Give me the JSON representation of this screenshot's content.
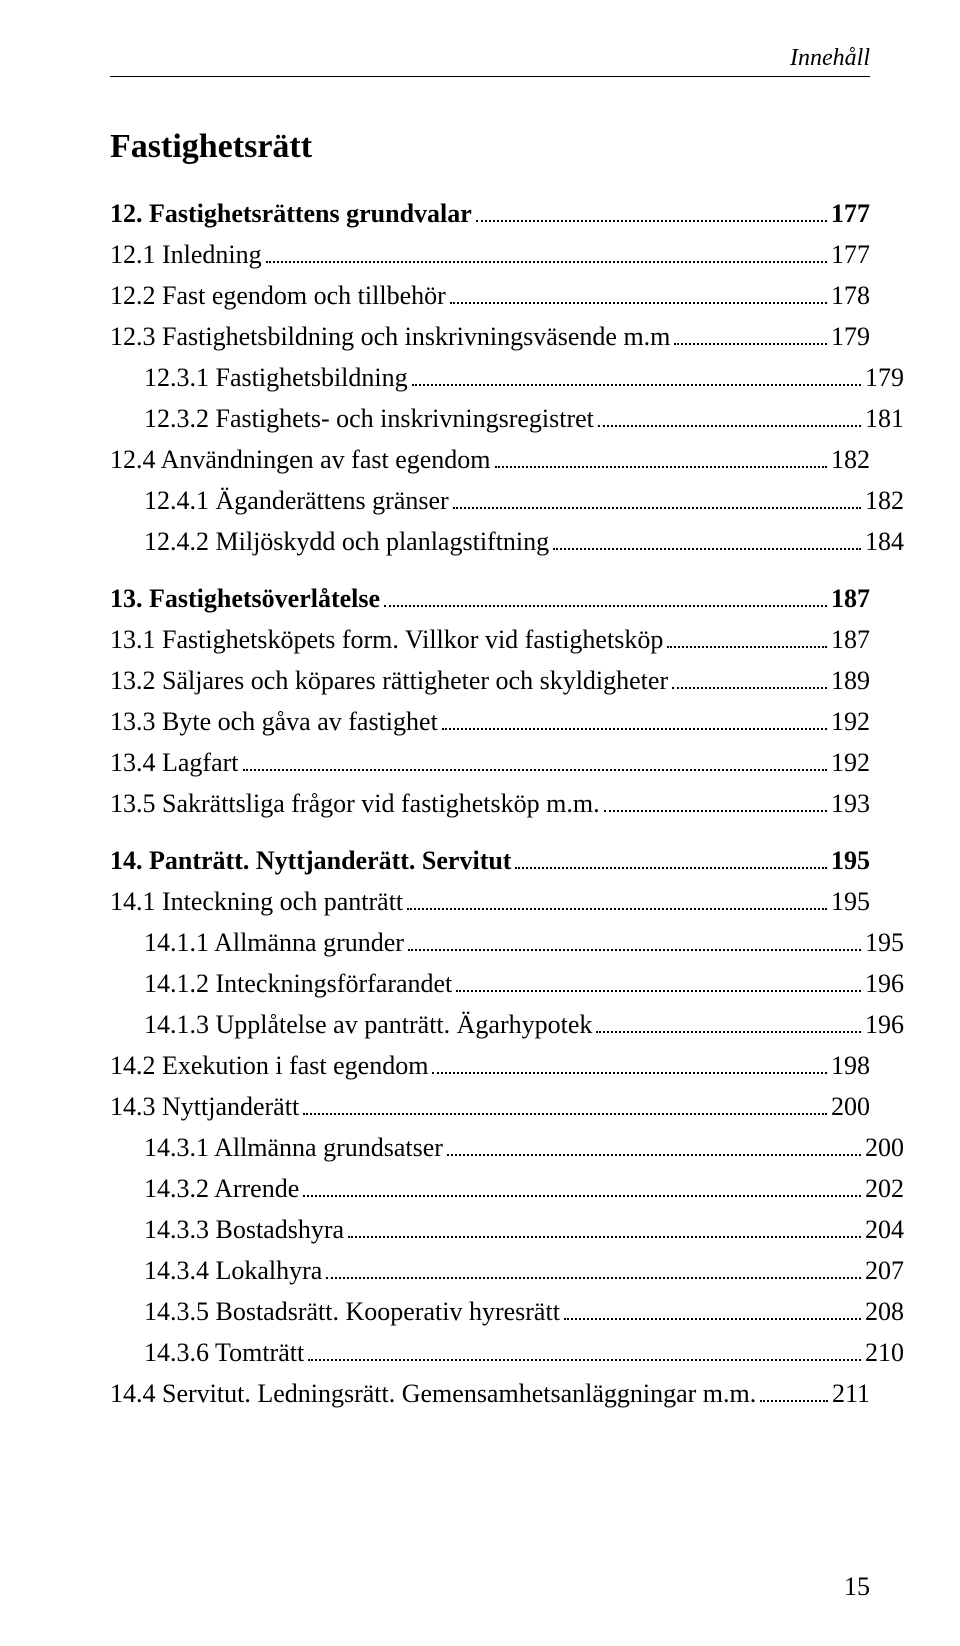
{
  "header": {
    "running_title": "Innehåll"
  },
  "section": {
    "title": "Fastighetsrätt"
  },
  "toc": [
    {
      "label": "12. Fastighetsrättens grundvalar",
      "page": "177",
      "bold": true,
      "indent": 0,
      "gap": false
    },
    {
      "label": "12.1 Inledning",
      "page": "177",
      "bold": false,
      "indent": 0,
      "gap": false
    },
    {
      "label": "12.2 Fast egendom och tillbehör",
      "page": "178",
      "bold": false,
      "indent": 0,
      "gap": false
    },
    {
      "label": "12.3 Fastighetsbildning och inskrivningsväsende m.m",
      "page": "179",
      "bold": false,
      "indent": 0,
      "gap": false
    },
    {
      "label": "12.3.1 Fastighetsbildning",
      "page": "179",
      "bold": false,
      "indent": 1,
      "gap": false
    },
    {
      "label": "12.3.2 Fastighets- och inskrivningsregistret",
      "page": "181",
      "bold": false,
      "indent": 1,
      "gap": false
    },
    {
      "label": "12.4 Användningen av fast egendom",
      "page": "182",
      "bold": false,
      "indent": 0,
      "gap": false
    },
    {
      "label": "12.4.1 Äganderättens gränser",
      "page": "182",
      "bold": false,
      "indent": 1,
      "gap": false
    },
    {
      "label": "12.4.2 Miljöskydd och planlagstiftning",
      "page": "184",
      "bold": false,
      "indent": 1,
      "gap": false
    },
    {
      "label": "13. Fastighetsöverlåtelse",
      "page": "187",
      "bold": true,
      "indent": 0,
      "gap": true
    },
    {
      "label": "13.1 Fastighetsköpets form. Villkor vid fastighetsköp",
      "page": "187",
      "bold": false,
      "indent": 0,
      "gap": false
    },
    {
      "label": "13.2 Säljares och köpares rättigheter och skyldigheter",
      "page": "189",
      "bold": false,
      "indent": 0,
      "gap": false
    },
    {
      "label": "13.3 Byte och gåva av fastighet",
      "page": "192",
      "bold": false,
      "indent": 0,
      "gap": false
    },
    {
      "label": "13.4 Lagfart",
      "page": "192",
      "bold": false,
      "indent": 0,
      "gap": false
    },
    {
      "label": "13.5 Sakrättsliga frågor vid fastighetsköp m.m.",
      "page": "193",
      "bold": false,
      "indent": 0,
      "gap": false
    },
    {
      "label": "14. Panträtt. Nyttjanderätt. Servitut",
      "page": "195",
      "bold": true,
      "indent": 0,
      "gap": true
    },
    {
      "label": "14.1 Inteckning och panträtt",
      "page": "195",
      "bold": false,
      "indent": 0,
      "gap": false
    },
    {
      "label": "14.1.1 Allmänna grunder",
      "page": "195",
      "bold": false,
      "indent": 1,
      "gap": false
    },
    {
      "label": "14.1.2 Inteckningsförfarandet",
      "page": "196",
      "bold": false,
      "indent": 1,
      "gap": false
    },
    {
      "label": "14.1.3 Upplåtelse av panträtt. Ägarhypotek",
      "page": "196",
      "bold": false,
      "indent": 1,
      "gap": false
    },
    {
      "label": "14.2 Exekution i fast egendom",
      "page": "198",
      "bold": false,
      "indent": 0,
      "gap": false
    },
    {
      "label": "14.3 Nyttjanderätt",
      "page": "200",
      "bold": false,
      "indent": 0,
      "gap": false
    },
    {
      "label": "14.3.1 Allmänna grundsatser",
      "page": "200",
      "bold": false,
      "indent": 1,
      "gap": false
    },
    {
      "label": "14.3.2 Arrende",
      "page": "202",
      "bold": false,
      "indent": 1,
      "gap": false
    },
    {
      "label": "14.3.3 Bostadshyra",
      "page": "204",
      "bold": false,
      "indent": 1,
      "gap": false
    },
    {
      "label": "14.3.4 Lokalhyra",
      "page": "207",
      "bold": false,
      "indent": 1,
      "gap": false
    },
    {
      "label": "14.3.5 Bostadsrätt. Kooperativ hyresrätt",
      "page": "208",
      "bold": false,
      "indent": 1,
      "gap": false
    },
    {
      "label": "14.3.6 Tomträtt",
      "page": "210",
      "bold": false,
      "indent": 1,
      "gap": false
    },
    {
      "label": "14.4 Servitut. Ledningsrätt. Gemensamhetsanläggningar m.m.",
      "page": "211",
      "bold": false,
      "indent": 0,
      "gap": false
    }
  ],
  "footer": {
    "page_number": "15"
  }
}
